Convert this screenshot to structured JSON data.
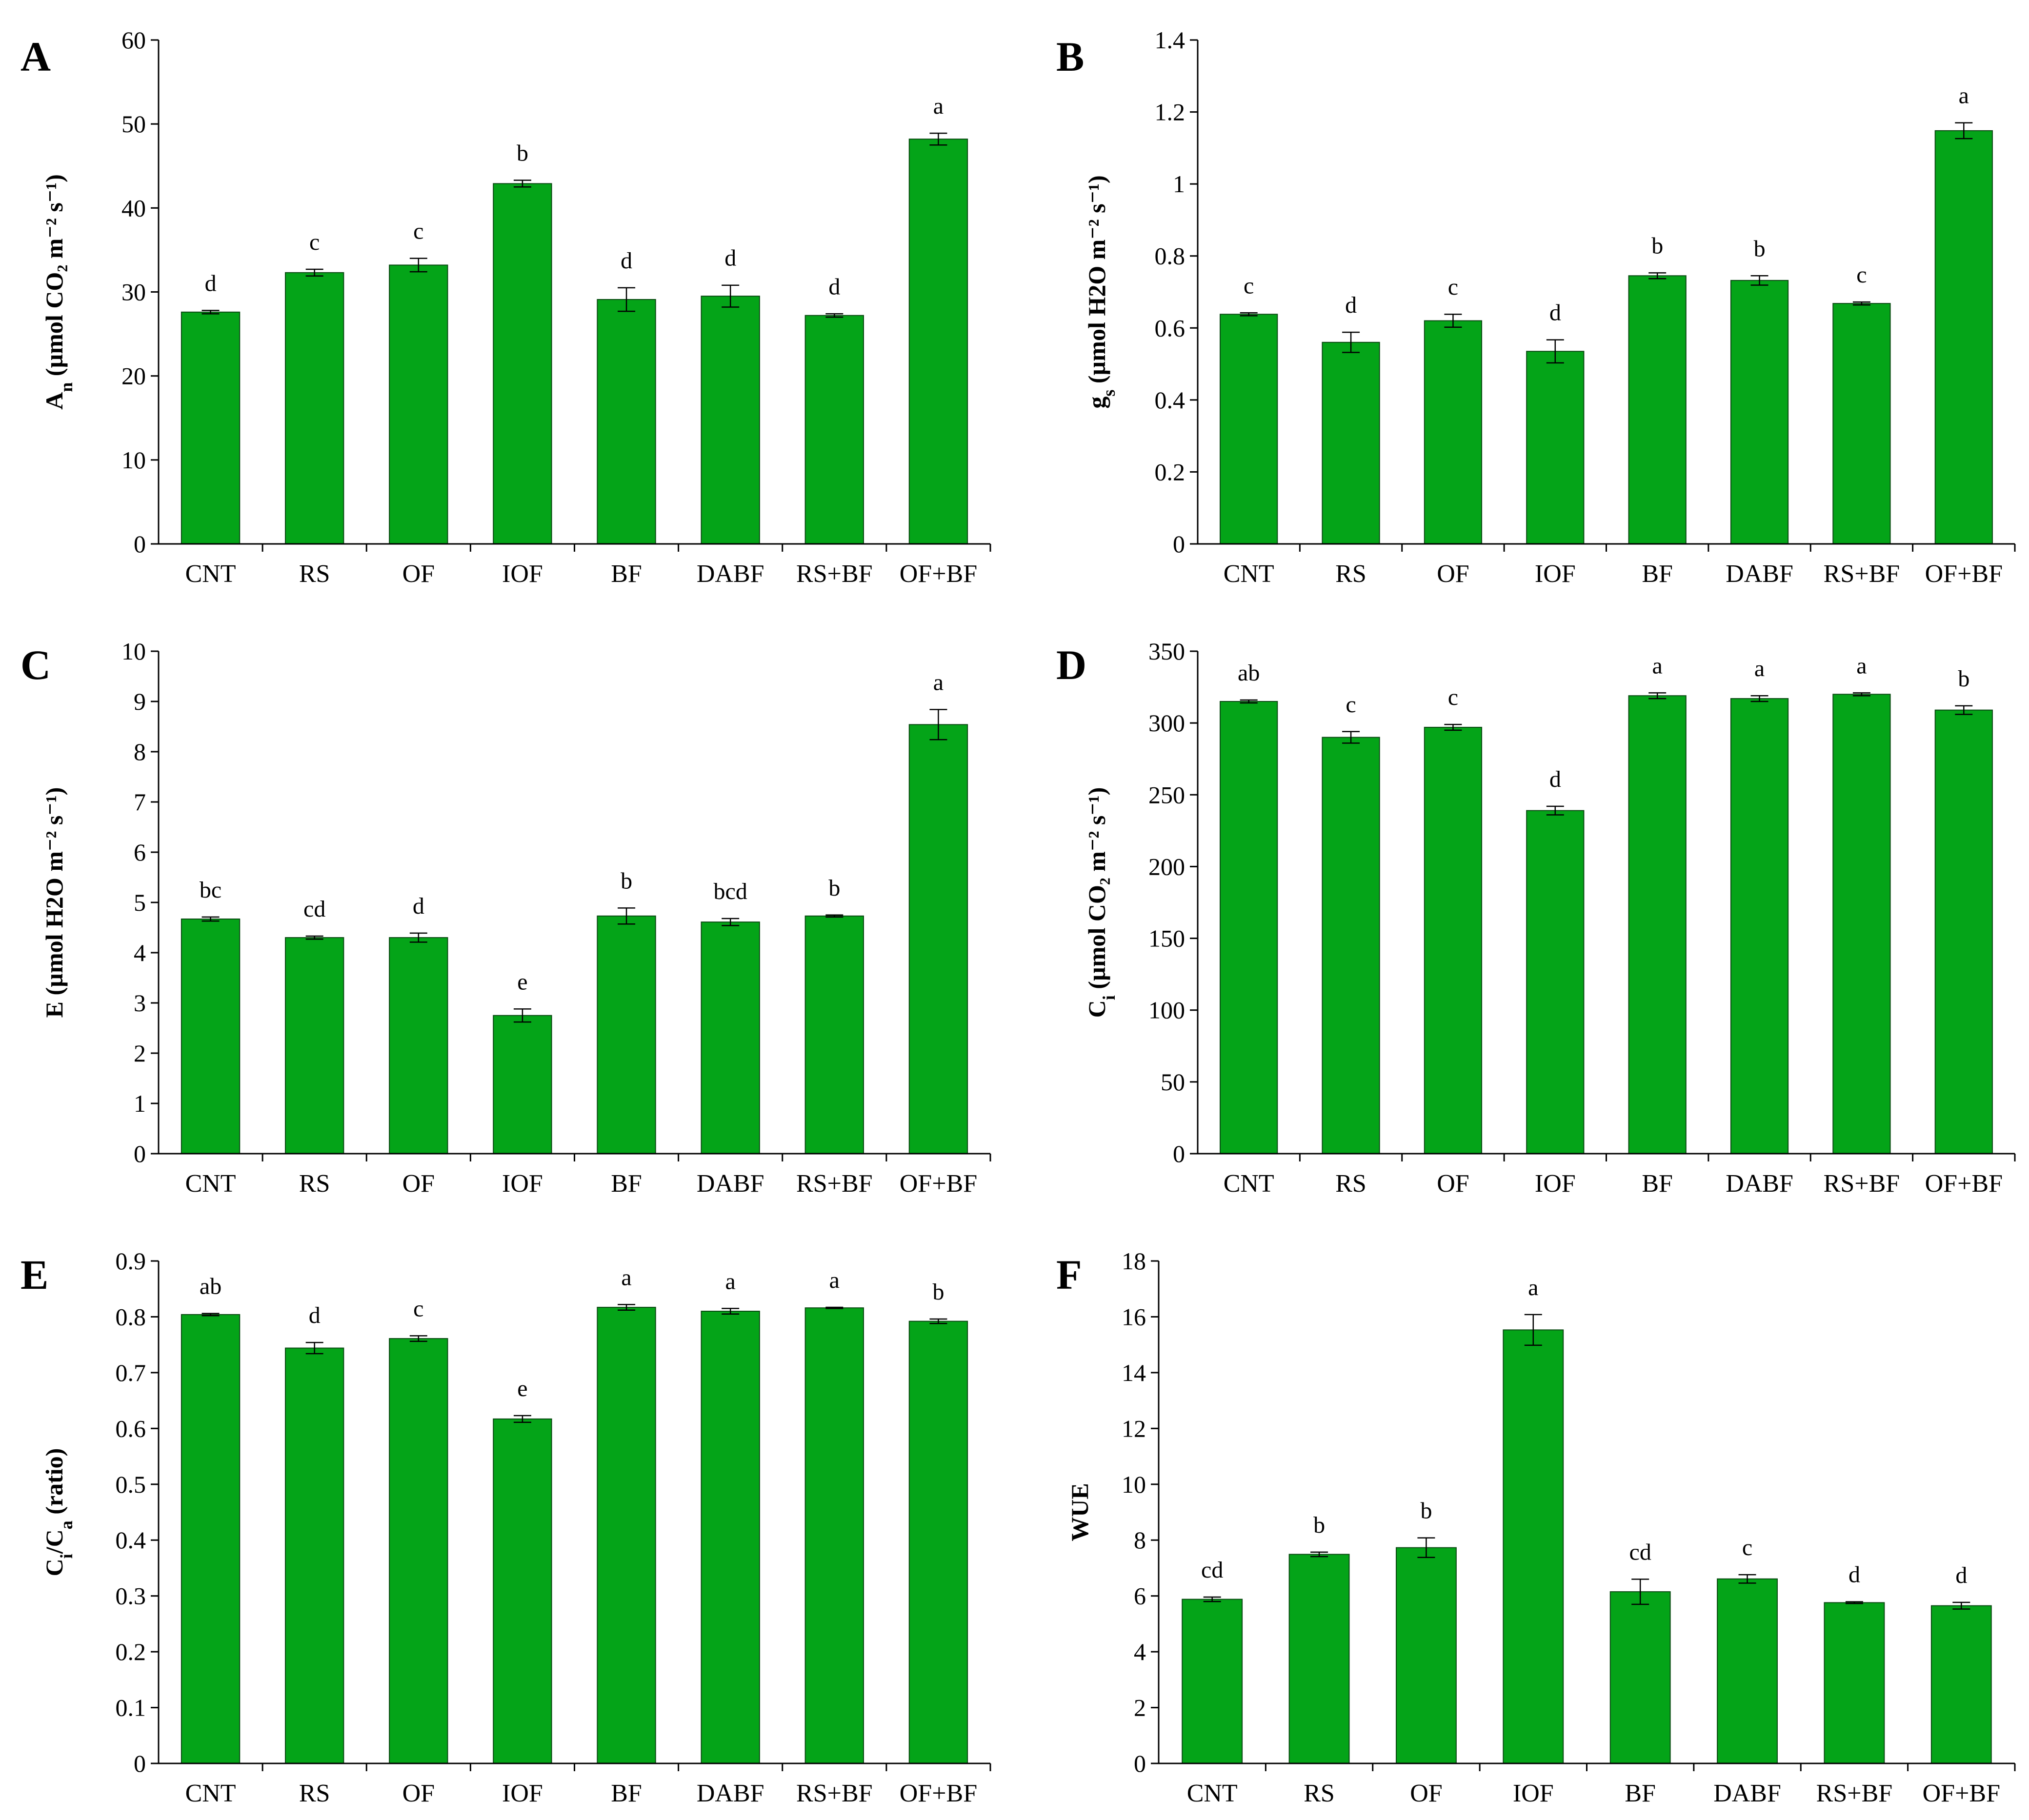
{
  "panels": [
    {
      "panel_label": "A",
      "ylabel": {
        "main": "A",
        "sub": "n",
        "rest": " (µmol CO₂ m⁻² s⁻¹)"
      },
      "chart_data": {
        "type": "bar",
        "categories": [
          "CNT",
          "RS",
          "OF",
          "IOF",
          "BF",
          "DABF",
          "RS+BF",
          "OF+BF"
        ],
        "values": [
          27.6,
          32.3,
          33.2,
          42.9,
          29.1,
          29.5,
          27.2,
          48.2
        ],
        "errors": [
          0.2,
          0.4,
          0.8,
          0.4,
          1.4,
          1.3,
          0.2,
          0.7
        ],
        "significance": [
          "d",
          "c",
          "c",
          "b",
          "d",
          "d",
          "d",
          "a"
        ],
        "ylim": [
          0,
          60
        ],
        "yticks": [
          "0",
          "10",
          "20",
          "30",
          "40",
          "50",
          "60"
        ],
        "bar_color": "#04a418"
      }
    },
    {
      "panel_label": "B",
      "ylabel": {
        "main": "g",
        "sub": "s",
        "rest": " (µmol H2O m⁻² s⁻¹)"
      },
      "chart_data": {
        "type": "bar",
        "categories": [
          "CNT",
          "RS",
          "OF",
          "IOF",
          "BF",
          "DABF",
          "RS+BF",
          "OF+BF"
        ],
        "values": [
          0.638,
          0.56,
          0.62,
          0.535,
          0.745,
          0.732,
          0.668,
          1.148
        ],
        "errors": [
          0.004,
          0.028,
          0.018,
          0.032,
          0.008,
          0.013,
          0.004,
          0.022
        ],
        "significance": [
          "c",
          "d",
          "c",
          "d",
          "b",
          "b",
          "c",
          "a"
        ],
        "ylim": [
          0,
          1.4
        ],
        "yticks": [
          "0",
          "0.2",
          "0.4",
          "0.6",
          "0.8",
          "1",
          "1.2",
          "1.4"
        ],
        "bar_color": "#04a418"
      }
    },
    {
      "panel_label": "C",
      "ylabel": {
        "main": "E",
        "sub": "",
        "rest": " (µmol H2O m⁻² s⁻¹)"
      },
      "chart_data": {
        "type": "bar",
        "categories": [
          "CNT",
          "RS",
          "OF",
          "IOF",
          "BF",
          "DABF",
          "RS+BF",
          "OF+BF"
        ],
        "values": [
          4.67,
          4.3,
          4.3,
          2.75,
          4.73,
          4.61,
          4.73,
          8.54
        ],
        "errors": [
          0.04,
          0.03,
          0.09,
          0.13,
          0.16,
          0.07,
          0.02,
          0.3
        ],
        "significance": [
          "bc",
          "cd",
          "d",
          "e",
          "b",
          "bcd",
          "b",
          "a"
        ],
        "ylim": [
          0,
          10
        ],
        "yticks": [
          "0",
          "1",
          "2",
          "3",
          "4",
          "5",
          "6",
          "7",
          "8",
          "9",
          "10"
        ],
        "bar_color": "#04a418"
      }
    },
    {
      "panel_label": "D",
      "ylabel": {
        "main": "C",
        "sub": "i",
        "rest": " (µmol CO₂ m⁻² s⁻¹)"
      },
      "chart_data": {
        "type": "bar",
        "categories": [
          "CNT",
          "RS",
          "OF",
          "IOF",
          "BF",
          "DABF",
          "RS+BF",
          "OF+BF"
        ],
        "values": [
          315,
          290,
          297,
          239,
          319,
          317,
          320,
          309
        ],
        "errors": [
          1,
          4,
          2,
          3,
          2,
          2,
          1,
          3
        ],
        "significance": [
          "ab",
          "c",
          "c",
          "d",
          "a",
          "a",
          "a",
          "b"
        ],
        "ylim": [
          0,
          350
        ],
        "yticks": [
          "0",
          "50",
          "100",
          "150",
          "200",
          "250",
          "300",
          "350"
        ],
        "bar_color": "#04a418"
      }
    },
    {
      "panel_label": "E",
      "ylabel": {
        "main": "C",
        "sub": "i",
        "rest": "/C",
        "sub2": "a",
        "rest2": " (ratio)"
      },
      "chart_data": {
        "type": "bar",
        "categories": [
          "CNT",
          "RS",
          "OF",
          "IOF",
          "BF",
          "DABF",
          "RS+BF",
          "OF+BF"
        ],
        "values": [
          0.804,
          0.744,
          0.761,
          0.617,
          0.817,
          0.81,
          0.816,
          0.792
        ],
        "errors": [
          0.002,
          0.01,
          0.005,
          0.006,
          0.005,
          0.005,
          0.001,
          0.004
        ],
        "significance": [
          "ab",
          "d",
          "c",
          "e",
          "a",
          "a",
          "a",
          "b"
        ],
        "ylim": [
          0,
          0.9
        ],
        "yticks": [
          "0",
          "0.1",
          "0.2",
          "0.3",
          "0.4",
          "0.5",
          "0.6",
          "0.7",
          "0.8",
          "0.9"
        ],
        "bar_color": "#04a418"
      }
    },
    {
      "panel_label": "F",
      "ylabel": {
        "main": "WUE",
        "sub": "",
        "rest": ""
      },
      "chart_data": {
        "type": "bar",
        "categories": [
          "CNT",
          "RS",
          "OF",
          "IOF",
          "BF",
          "DABF",
          "RS+BF",
          "OF+BF"
        ],
        "values": [
          5.88,
          7.49,
          7.73,
          15.53,
          6.15,
          6.61,
          5.76,
          5.65
        ],
        "errors": [
          0.08,
          0.08,
          0.35,
          0.55,
          0.45,
          0.15,
          0.03,
          0.12
        ],
        "significance": [
          "cd",
          "b",
          "b",
          "a",
          "cd",
          "c",
          "d",
          "d"
        ],
        "ylim": [
          0,
          18
        ],
        "yticks": [
          "0",
          "2",
          "4",
          "6",
          "8",
          "10",
          "12",
          "14",
          "16",
          "18"
        ],
        "bar_color": "#04a418"
      }
    }
  ]
}
